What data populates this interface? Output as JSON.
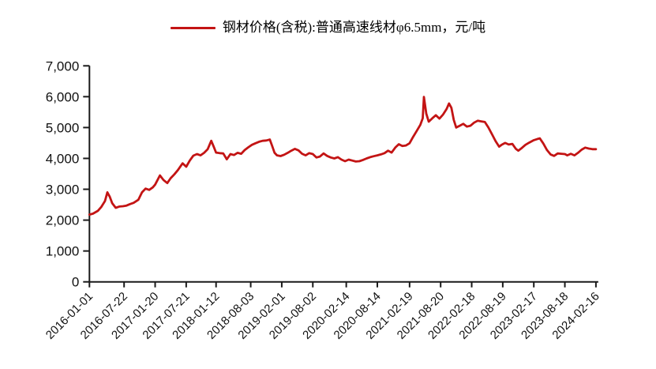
{
  "legend": {
    "label": "钢材价格(含税):普通高速线材φ6.5mm，元/吨",
    "line_color": "#C31414"
  },
  "chart_data": {
    "type": "line",
    "title": "",
    "xlabel": "",
    "ylabel": "",
    "grid": false,
    "legend_position": "top-center",
    "ylim": [
      0,
      7000
    ],
    "y_ticks": [
      0,
      1000,
      2000,
      3000,
      4000,
      5000,
      6000,
      7000
    ],
    "x_tick_labels": [
      "2016-01-01",
      "2016-07-22",
      "2017-01-20",
      "2017-07-21",
      "2018-01-12",
      "2018-08-03",
      "2019-02-01",
      "2019-08-02",
      "2020-02-14",
      "2020-08-14",
      "2021-02-19",
      "2021-08-20",
      "2022-02-18",
      "2022-08-19",
      "2023-02-17",
      "2023-08-18",
      "2024-02-16"
    ],
    "series": [
      {
        "name": "钢材价格(含税):普通高速线材φ6.5mm，元/吨",
        "color": "#C31414",
        "unit": "元/吨",
        "x": [
          "2016-01-01",
          "2016-01-22",
          "2016-02-19",
          "2016-03-11",
          "2016-04-01",
          "2016-04-15",
          "2016-04-29",
          "2016-05-13",
          "2016-06-03",
          "2016-06-24",
          "2016-07-15",
          "2016-08-05",
          "2016-08-26",
          "2016-09-16",
          "2016-10-14",
          "2016-11-04",
          "2016-11-25",
          "2016-12-16",
          "2017-01-06",
          "2017-01-20",
          "2017-02-17",
          "2017-03-10",
          "2017-04-01",
          "2017-04-21",
          "2017-05-12",
          "2017-06-02",
          "2017-06-30",
          "2017-07-21",
          "2017-08-11",
          "2017-09-01",
          "2017-09-22",
          "2017-10-13",
          "2017-11-03",
          "2017-11-24",
          "2017-12-15",
          "2017-12-29",
          "2018-01-12",
          "2018-02-02",
          "2018-02-23",
          "2018-03-16",
          "2018-04-06",
          "2018-04-27",
          "2018-05-18",
          "2018-06-08",
          "2018-06-29",
          "2018-07-20",
          "2018-08-10",
          "2018-08-31",
          "2018-09-21",
          "2018-10-12",
          "2018-11-02",
          "2018-11-23",
          "2018-12-07",
          "2018-12-21",
          "2019-01-04",
          "2019-01-25",
          "2019-02-15",
          "2019-03-08",
          "2019-03-29",
          "2019-04-19",
          "2019-05-10",
          "2019-05-31",
          "2019-06-21",
          "2019-07-12",
          "2019-08-02",
          "2019-08-23",
          "2019-09-13",
          "2019-10-04",
          "2019-10-25",
          "2019-11-15",
          "2019-12-06",
          "2019-12-27",
          "2020-01-17",
          "2020-02-07",
          "2020-02-28",
          "2020-03-20",
          "2020-04-10",
          "2020-05-01",
          "2020-05-22",
          "2020-06-12",
          "2020-07-03",
          "2020-07-24",
          "2020-08-14",
          "2020-09-04",
          "2020-09-25",
          "2020-10-16",
          "2020-11-06",
          "2020-11-27",
          "2020-12-18",
          "2021-01-08",
          "2021-01-29",
          "2021-02-19",
          "2021-03-12",
          "2021-04-02",
          "2021-04-23",
          "2021-05-07",
          "2021-05-14",
          "2021-05-28",
          "2021-06-11",
          "2021-07-02",
          "2021-07-23",
          "2021-08-13",
          "2021-09-03",
          "2021-09-24",
          "2021-10-08",
          "2021-10-22",
          "2021-11-05",
          "2021-11-19",
          "2021-12-10",
          "2021-12-31",
          "2022-01-21",
          "2022-02-11",
          "2022-03-04",
          "2022-03-25",
          "2022-04-15",
          "2022-05-06",
          "2022-05-27",
          "2022-06-17",
          "2022-07-08",
          "2022-07-29",
          "2022-08-12",
          "2022-09-02",
          "2022-09-23",
          "2022-10-14",
          "2022-11-04",
          "2022-11-18",
          "2022-12-09",
          "2022-12-30",
          "2023-01-20",
          "2023-02-17",
          "2023-03-10",
          "2023-03-24",
          "2023-04-14",
          "2023-05-05",
          "2023-05-26",
          "2023-06-16",
          "2023-07-07",
          "2023-07-28",
          "2023-08-18",
          "2023-09-01",
          "2023-09-22",
          "2023-10-13",
          "2023-11-03",
          "2023-11-24",
          "2023-12-15",
          "2024-01-05",
          "2024-01-26",
          "2024-02-16"
        ],
        "values": [
          2180,
          2210,
          2300,
          2430,
          2620,
          2900,
          2760,
          2550,
          2400,
          2440,
          2450,
          2470,
          2520,
          2560,
          2660,
          2900,
          3020,
          2980,
          3060,
          3150,
          3450,
          3300,
          3200,
          3360,
          3480,
          3620,
          3840,
          3730,
          3930,
          4090,
          4140,
          4100,
          4180,
          4300,
          4570,
          4380,
          4190,
          4170,
          4160,
          3970,
          4140,
          4110,
          4180,
          4150,
          4270,
          4360,
          4440,
          4490,
          4540,
          4570,
          4580,
          4610,
          4400,
          4180,
          4100,
          4075,
          4120,
          4180,
          4250,
          4310,
          4260,
          4150,
          4100,
          4170,
          4140,
          4030,
          4060,
          4160,
          4080,
          4030,
          4000,
          4040,
          3960,
          3910,
          3960,
          3930,
          3900,
          3910,
          3950,
          4000,
          4040,
          4070,
          4100,
          4130,
          4170,
          4250,
          4190,
          4350,
          4460,
          4400,
          4420,
          4490,
          4700,
          4890,
          5090,
          5300,
          5990,
          5450,
          5190,
          5300,
          5400,
          5290,
          5420,
          5600,
          5780,
          5640,
          5250,
          5000,
          5060,
          5120,
          5030,
          5060,
          5160,
          5220,
          5200,
          5180,
          5000,
          4780,
          4560,
          4380,
          4440,
          4500,
          4450,
          4470,
          4310,
          4250,
          4340,
          4440,
          4510,
          4590,
          4630,
          4650,
          4480,
          4270,
          4130,
          4080,
          4160,
          4150,
          4140,
          4100,
          4150,
          4100,
          4180,
          4280,
          4350,
          4320,
          4300,
          4300
        ]
      }
    ]
  }
}
